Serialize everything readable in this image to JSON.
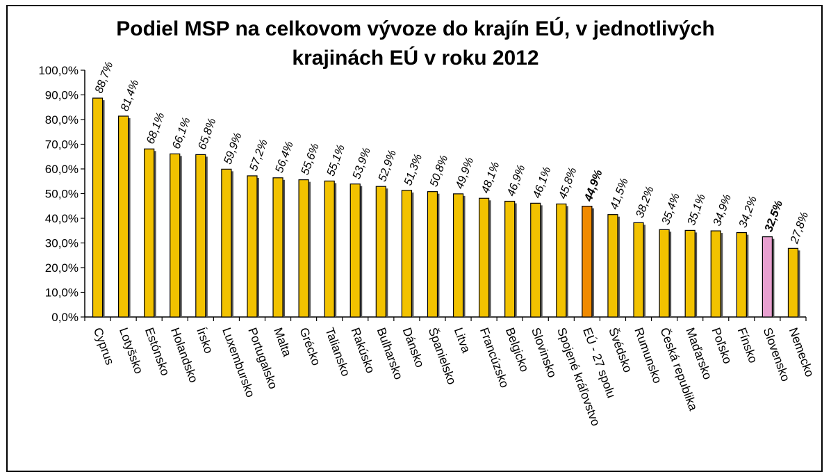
{
  "chart_data": {
    "type": "bar",
    "title_line1": "Podiel MSP na celkovom vývoze do krajín EÚ, v jednotlivých",
    "title_line2": "krajinách EÚ v roku 2012",
    "ylim": [
      0,
      100
    ],
    "yticks": [
      "0,0%",
      "10,0%",
      "20,0%",
      "30,0%",
      "40,0%",
      "50,0%",
      "60,0%",
      "70,0%",
      "80,0%",
      "90,0%",
      "100,0%"
    ],
    "grid": false,
    "categories": [
      "Cyprus",
      "Lotyšsko",
      "Estónsko",
      "Holandsko",
      "Írsko",
      "Luxembursko",
      "Portugalsko",
      "Malta",
      "Grécko",
      "Taliansko",
      "Rakúsko",
      "Bulharsko",
      "Dánsko",
      "Španielsko",
      "Litva",
      "Francúzsko",
      "Belgicko",
      "Slovinsko",
      "Spojené kráľovstvo",
      "EÚ - 27 spolu",
      "Švédsko",
      "Rumunsko",
      "Česká republika",
      "Maďarsko",
      "Poľsko",
      "Fínsko",
      "Slovensko",
      "Nemecko"
    ],
    "values": [
      88.7,
      81.4,
      68.1,
      66.1,
      65.8,
      59.9,
      57.2,
      56.4,
      55.6,
      55.1,
      53.9,
      52.9,
      51.3,
      50.8,
      49.9,
      48.1,
      46.9,
      46.1,
      45.8,
      44.9,
      41.5,
      38.2,
      35.4,
      35.1,
      34.9,
      34.2,
      32.5,
      27.8
    ],
    "value_labels": [
      "88,7%",
      "81,4%",
      "68,1%",
      "66,1%",
      "65,8%",
      "59,9%",
      "57,2%",
      "56,4%",
      "55,6%",
      "55,1%",
      "53,9%",
      "52,9%",
      "51,3%",
      "50,8%",
      "49,9%",
      "48,1%",
      "46,9%",
      "46,1%",
      "45,8%",
      "44,9%",
      "41,5%",
      "38,2%",
      "35,4%",
      "35,1%",
      "34,9%",
      "34,2%",
      "32,5%",
      "27,8%"
    ],
    "bar_colors": {
      "default": "#F2C200",
      "highlight_eu": "#F08A00",
      "highlight_sk": "#E8A0D0"
    },
    "highlights": {
      "EÚ - 27 spolu": "highlight_eu",
      "Slovensko": "highlight_sk"
    },
    "bold_labels": [
      "EÚ - 27 spolu",
      "Slovensko"
    ]
  }
}
